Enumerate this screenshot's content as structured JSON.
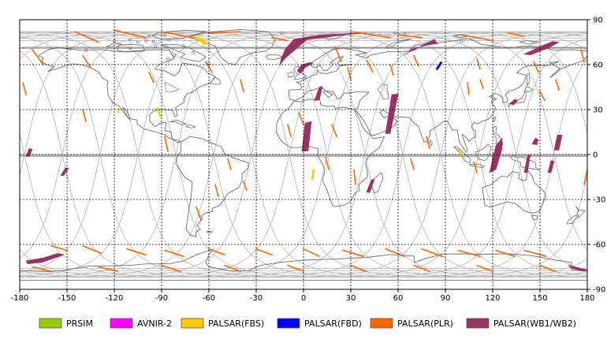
{
  "map": {
    "lon_range": [
      -180,
      180
    ],
    "lat_range": [
      -90,
      90
    ],
    "grid": true,
    "x_ticks": [
      -180,
      -150,
      -120,
      -90,
      -60,
      -30,
      0,
      30,
      60,
      90,
      120,
      150,
      180
    ],
    "y_ticks": [
      90,
      60,
      30,
      0,
      -30,
      -60,
      -90
    ]
  },
  "legend": [
    {
      "key": "prism",
      "label": "PRSIM",
      "color": "#99cc00"
    },
    {
      "key": "avnir2",
      "label": "AVNIR-2",
      "color": "#ff00ff"
    },
    {
      "key": "fbs",
      "label": "PALSAR(FBS)",
      "color": "#ffcc00"
    },
    {
      "key": "fbd",
      "label": "PALSAR(FBD)",
      "color": "#0000ff"
    },
    {
      "key": "plr",
      "label": "PALSAR(PLR)",
      "color": "#ff6600"
    },
    {
      "key": "wb",
      "label": "PALSAR(WB1/WB2)",
      "color": "#993366"
    }
  ],
  "colors": {
    "coast": "#6e6e6e",
    "orbit": "#b4b4b4",
    "grid": "#000000",
    "frame": "#000000"
  }
}
